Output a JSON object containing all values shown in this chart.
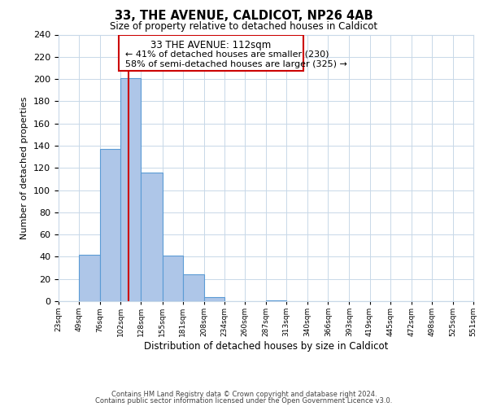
{
  "title": "33, THE AVENUE, CALDICOT, NP26 4AB",
  "subtitle": "Size of property relative to detached houses in Caldicot",
  "xlabel": "Distribution of detached houses by size in Caldicot",
  "ylabel": "Number of detached properties",
  "bin_labels": [
    "23sqm",
    "49sqm",
    "76sqm",
    "102sqm",
    "128sqm",
    "155sqm",
    "181sqm",
    "208sqm",
    "234sqm",
    "260sqm",
    "287sqm",
    "313sqm",
    "340sqm",
    "366sqm",
    "393sqm",
    "419sqm",
    "445sqm",
    "472sqm",
    "498sqm",
    "525sqm",
    "551sqm"
  ],
  "bin_edges": [
    23,
    49,
    76,
    102,
    128,
    155,
    181,
    208,
    234,
    260,
    287,
    313,
    340,
    366,
    393,
    419,
    445,
    472,
    498,
    525,
    551
  ],
  "bar_heights": [
    0,
    42,
    137,
    201,
    116,
    41,
    24,
    4,
    0,
    0,
    1,
    0,
    0,
    0,
    0,
    0,
    0,
    0,
    0,
    0
  ],
  "bar_color": "#aec6e8",
  "bar_edge_color": "#5b9bd5",
  "vline_x": 112,
  "vline_color": "#cc0000",
  "ylim": [
    0,
    240
  ],
  "yticks": [
    0,
    20,
    40,
    60,
    80,
    100,
    120,
    140,
    160,
    180,
    200,
    220,
    240
  ],
  "annotation_title": "33 THE AVENUE: 112sqm",
  "annotation_line1": "← 41% of detached houses are smaller (230)",
  "annotation_line2": "58% of semi-detached houses are larger (325) →",
  "annotation_box_color": "#cc0000",
  "footer_line1": "Contains HM Land Registry data © Crown copyright and database right 2024.",
  "footer_line2": "Contains public sector information licensed under the Open Government Licence v3.0.",
  "bg_color": "#ffffff",
  "grid_color": "#c8d8e8"
}
